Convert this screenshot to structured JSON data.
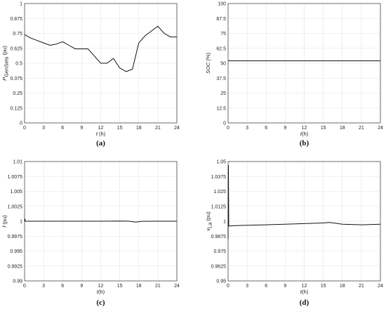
{
  "chart_data": [
    {
      "type": "line",
      "panel_label": "(a)",
      "ylabel_main": "P",
      "ylabel_sub": "GenSets",
      "ylabel_unit": " (pu)",
      "xlabel_main": "t",
      "xlabel_unit": " (h)",
      "ylim": [
        0,
        1
      ],
      "yticks": [
        "0",
        "0.125",
        "0.25",
        "0.375",
        "0.5",
        "0.625",
        "0.75",
        "0.875",
        "1"
      ],
      "xlim": [
        0,
        24
      ],
      "xticks": [
        "0",
        "3",
        "6",
        "9",
        "12",
        "15",
        "18",
        "21",
        "24"
      ],
      "grid": true,
      "series": [
        {
          "x": [
            0,
            1,
            2,
            3,
            4,
            5,
            6,
            7,
            8,
            9,
            10,
            11,
            12,
            13,
            14,
            15,
            16,
            17,
            18,
            19,
            20,
            21,
            22,
            23,
            24
          ],
          "y": [
            0.74,
            0.71,
            0.69,
            0.67,
            0.65,
            0.66,
            0.68,
            0.65,
            0.62,
            0.62,
            0.62,
            0.56,
            0.5,
            0.5,
            0.54,
            0.46,
            0.43,
            0.45,
            0.67,
            0.73,
            0.77,
            0.81,
            0.75,
            0.72,
            0.72
          ]
        }
      ]
    },
    {
      "type": "line",
      "panel_label": "(b)",
      "ylabel_main": "SOC",
      "ylabel_sub": "",
      "ylabel_unit": " (%)",
      "xlabel_main": "t",
      "xlabel_unit": "(h)",
      "ylim": [
        0,
        100
      ],
      "yticks": [
        "0",
        "12.5",
        "25",
        "37.5",
        "50",
        "62.5",
        "75",
        "87.5",
        "100"
      ],
      "xlim": [
        0,
        24
      ],
      "xticks": [
        "0",
        "3",
        "6",
        "9",
        "12",
        "15",
        "18",
        "21",
        "24"
      ],
      "grid": true,
      "series": [
        {
          "x": [
            0,
            24
          ],
          "y": [
            52,
            52
          ]
        }
      ]
    },
    {
      "type": "line",
      "panel_label": "(c)",
      "ylabel_main": "f",
      "ylabel_sub": "",
      "ylabel_unit": " (pu)",
      "xlabel_main": "t",
      "xlabel_unit": "(h)",
      "ylim": [
        0.99,
        1.01
      ],
      "yticks": [
        "0.99",
        "0.9925",
        "0.995",
        "0.9975",
        "1",
        "1.0025",
        "1.005",
        "1.0075",
        "1.01"
      ],
      "xlim": [
        0,
        24
      ],
      "xticks": [
        "0",
        "3",
        "6",
        "9",
        "12",
        "15",
        "18",
        "21",
        "24"
      ],
      "grid": true,
      "series": [
        {
          "x": [
            0,
            0.05,
            0.12,
            1,
            3,
            6,
            9,
            12,
            15,
            16.5,
            17.5,
            18.5,
            21,
            24
          ],
          "y": [
            1.0,
            1.0004,
            1.0,
            1.0,
            1.0,
            1.0,
            1.0,
            1.0,
            1.00003,
            1.0,
            0.99985,
            0.99998,
            1.0,
            1.0
          ]
        }
      ]
    },
    {
      "type": "line",
      "panel_label": "(d)",
      "ylabel_main": "v",
      "ylabel_sub": "La",
      "ylabel_unit": " (pu)",
      "xlabel_main": "t",
      "xlabel_unit": "(h)",
      "ylim": [
        0.95,
        1.05
      ],
      "yticks": [
        "0.95",
        "0.9625",
        "0.975",
        "0.9875",
        "1",
        "1.0125",
        "1.025",
        "1.0375",
        "1.05"
      ],
      "xlim": [
        0,
        24
      ],
      "xticks": [
        "0",
        "3",
        "6",
        "9",
        "12",
        "15",
        "18",
        "21",
        "24"
      ],
      "grid": true,
      "series": [
        {
          "x": [
            0,
            0.05,
            0.1,
            0.2,
            2,
            6,
            9,
            12,
            15,
            16,
            18,
            21,
            24
          ],
          "y": [
            0.985,
            1.047,
            0.996,
            0.996,
            0.9965,
            0.997,
            0.9975,
            0.998,
            0.9985,
            0.999,
            0.9975,
            0.997,
            0.9975
          ]
        }
      ]
    }
  ]
}
